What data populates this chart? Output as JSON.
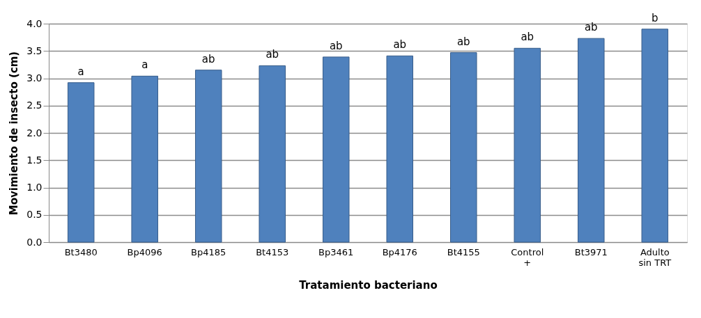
{
  "chart_data": {
    "type": "bar",
    "xlabel": "Tratamiento bacteriano",
    "ylabel": "Movimiento de insecto (cm)",
    "categories": [
      "Bt3480",
      "Bp4096",
      "Bp4185",
      "Bt4153",
      "Bp3461",
      "Bp4176",
      "Bt4155",
      "Control +",
      "Bt3971",
      "Adulto sin TRT"
    ],
    "values": [
      2.92,
      3.04,
      3.15,
      3.23,
      3.39,
      3.41,
      3.47,
      3.55,
      3.73,
      3.9
    ],
    "value_labels": [
      "a",
      "a",
      "ab",
      "ab",
      "ab",
      "ab",
      "ab",
      "ab",
      "ab",
      "b"
    ],
    "color": "#4f81bd",
    "ylim": [
      0,
      4
    ],
    "yticks": [
      {
        "value": 0,
        "label": "0.0"
      },
      {
        "value": 0.5,
        "label": "0.5"
      },
      {
        "value": 1,
        "label": "1.0"
      },
      {
        "value": 1.5,
        "label": "1.5"
      },
      {
        "value": 2,
        "label": "2.0"
      },
      {
        "value": 2.5,
        "label": "2.5"
      },
      {
        "value": 3,
        "label": "3.0"
      },
      {
        "value": 3.5,
        "label": "3.5"
      },
      {
        "value": 4,
        "label": "4.0"
      }
    ],
    "grid": "y"
  }
}
